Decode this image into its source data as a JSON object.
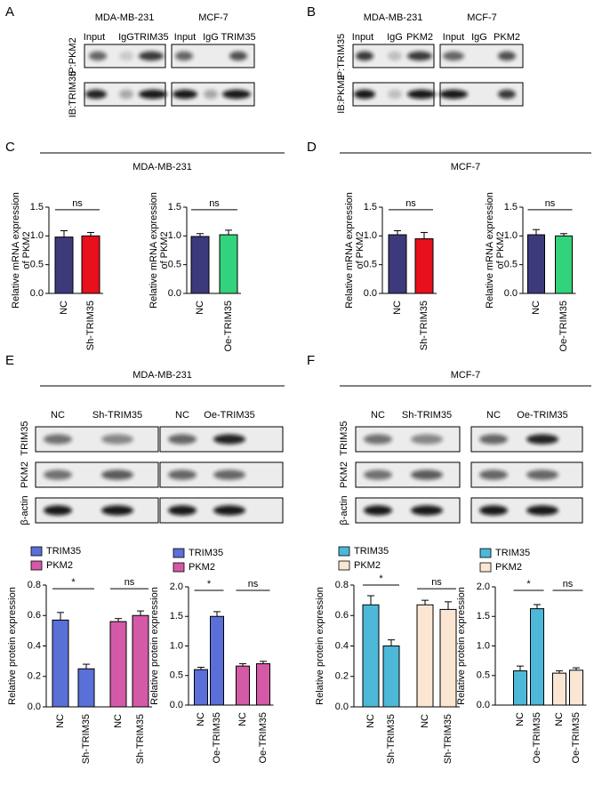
{
  "panels": {
    "A": {
      "letter": "A",
      "cell_lines": [
        "MDA-MB-231",
        "MCF-7"
      ],
      "lanes": [
        "Input",
        "IgG",
        "TRIM35",
        "Input",
        "IgG",
        "TRIM35"
      ],
      "ip": "IP:PKM2",
      "ib": "IB:TRIM35"
    },
    "B": {
      "letter": "B",
      "cell_lines": [
        "MDA-MB-231",
        "MCF-7"
      ],
      "lanes": [
        "Input",
        "IgG",
        "PKM2",
        "Input",
        "IgG",
        "PKM2"
      ],
      "ip": "IP:TRIM35",
      "ib": "IB:PKM2"
    },
    "C": {
      "letter": "C",
      "title": "MDA-MB-231"
    },
    "D": {
      "letter": "D",
      "title": "MCF-7"
    },
    "E": {
      "letter": "E",
      "title": "MDA-MB-231",
      "lanes": [
        "NC",
        "Sh-TRIM35",
        "NC",
        "Oe-TRIM35"
      ],
      "rows": [
        "TRIM35",
        "PKM2",
        "β-actin"
      ]
    },
    "F": {
      "letter": "F",
      "title": "MCF-7",
      "lanes": [
        "NC",
        "Sh-TRIM35",
        "NC",
        "Oe-TRIM35"
      ],
      "rows": [
        "TRIM35",
        "PKM2",
        "β-actin"
      ]
    }
  },
  "chart_data": [
    {
      "type": "bar",
      "ylabel": [
        "Relative mRNA expression",
        "of PKM2"
      ],
      "categories": [
        "NC",
        "Sh-TRIM35"
      ],
      "values": [
        0.98,
        1.0
      ],
      "errors": [
        0.11,
        0.06
      ],
      "colors": [
        "#3d3a7c",
        "#e8101c"
      ],
      "ylim": [
        0,
        1.5
      ],
      "yticks": [
        {
          "value": 0,
          "label": "0.0"
        },
        0.5,
        {
          "value": 1,
          "label": "1.0"
        },
        1.5
      ],
      "annotations": [
        "ns"
      ]
    },
    {
      "type": "bar",
      "ylabel": [
        "Relative mRNA expression",
        "of PKM2"
      ],
      "categories": [
        "NC",
        "Oe-TRIM35"
      ],
      "values": [
        0.99,
        1.02
      ],
      "errors": [
        0.05,
        0.08
      ],
      "colors": [
        "#3d3a7c",
        "#33d27c"
      ],
      "ylim": [
        0,
        1.5
      ],
      "yticks": [
        {
          "value": 0,
          "label": "0.0"
        },
        0.5,
        {
          "value": 1,
          "label": "1.0"
        },
        1.5
      ],
      "annotations": [
        "ns"
      ]
    },
    {
      "type": "bar",
      "ylabel": [
        "Relative mRNA expression",
        "of PKM2"
      ],
      "categories": [
        "NC",
        "Sh-TRIM35"
      ],
      "values": [
        1.02,
        0.95
      ],
      "errors": [
        0.07,
        0.11
      ],
      "colors": [
        "#3d3a7c",
        "#e8101c"
      ],
      "ylim": [
        0,
        1.5
      ],
      "yticks": [
        {
          "value": 0,
          "label": "0.0"
        },
        0.5,
        {
          "value": 1,
          "label": "1.0"
        },
        1.5
      ],
      "annotations": [
        "ns"
      ]
    },
    {
      "type": "bar",
      "ylabel": [
        "Relative mRNA expression",
        "of PKM2"
      ],
      "categories": [
        "NC",
        "Oe-TRIM35"
      ],
      "values": [
        1.02,
        1.0
      ],
      "errors": [
        0.09,
        0.04
      ],
      "colors": [
        "#3d3a7c",
        "#33d27c"
      ],
      "ylim": [
        0,
        1.5
      ],
      "yticks": [
        {
          "value": 0,
          "label": "0.0"
        },
        0.5,
        {
          "value": 1,
          "label": "1.0"
        },
        1.5
      ],
      "annotations": [
        "ns"
      ]
    },
    {
      "type": "grouped-bar",
      "ylabel": [
        "Relative protein expression"
      ],
      "categories": [
        "NC",
        "Sh-TRIM35",
        "NC",
        "Sh-TRIM35"
      ],
      "series": [
        {
          "name": "TRIM35",
          "color": "#5b6fd8",
          "values": [
            0.57,
            0.25,
            null,
            null
          ],
          "errors": [
            0.05,
            0.03,
            null,
            null
          ]
        },
        {
          "name": "PKM2",
          "color": "#d45aa8",
          "values": [
            null,
            null,
            0.56,
            0.6
          ],
          "errors": [
            null,
            null,
            0.02,
            0.03
          ]
        }
      ],
      "ylim": [
        0,
        0.8
      ],
      "yticks": [
        {
          "value": 0,
          "label": "0.0"
        },
        0.2,
        0.4,
        0.6,
        0.8
      ],
      "annotations": [
        "*",
        "ns"
      ]
    },
    {
      "type": "grouped-bar",
      "ylabel": [
        "Relative protein expression"
      ],
      "categories": [
        "NC",
        "Oe-TRIM35",
        "NC",
        "Oe-TRIM35"
      ],
      "series": [
        {
          "name": "TRIM35",
          "color": "#5b6fd8",
          "values": [
            0.6,
            1.5,
            null,
            null
          ],
          "errors": [
            0.04,
            0.08,
            null,
            null
          ]
        },
        {
          "name": "PKM2",
          "color": "#d45aa8",
          "values": [
            null,
            null,
            0.66,
            0.7
          ],
          "errors": [
            null,
            null,
            0.04,
            0.04
          ]
        }
      ],
      "ylim": [
        0,
        2
      ],
      "yticks": [
        {
          "value": 0,
          "label": "0.0"
        },
        0.5,
        {
          "value": 1,
          "label": "1.0"
        },
        1.5,
        {
          "value": 2,
          "label": "2.0"
        }
      ],
      "annotations": [
        "*",
        "ns"
      ]
    },
    {
      "type": "grouped-bar",
      "ylabel": [
        "Relative protein expression"
      ],
      "categories": [
        "NC",
        "Sh-TRIM35",
        "NC",
        "Sh-TRIM35"
      ],
      "series": [
        {
          "name": "TRIM35",
          "color": "#4db8d8",
          "values": [
            0.67,
            0.4,
            null,
            null
          ],
          "errors": [
            0.06,
            0.04,
            null,
            null
          ]
        },
        {
          "name": "PKM2",
          "color": "#fbe6d4",
          "values": [
            null,
            null,
            0.67,
            0.64
          ],
          "errors": [
            null,
            null,
            0.03,
            0.05
          ]
        }
      ],
      "ylim": [
        0,
        0.8
      ],
      "yticks": [
        {
          "value": 0,
          "label": "0.0"
        },
        0.2,
        0.4,
        0.6,
        0.8
      ],
      "annotations": [
        "*",
        "ns"
      ]
    },
    {
      "type": "grouped-bar",
      "ylabel": [
        "Relative protein expression"
      ],
      "categories": [
        "NC",
        "Oe-TRIM35",
        "NC",
        "Oe-TRIM35"
      ],
      "series": [
        {
          "name": "TRIM35",
          "color": "#4db8d8",
          "values": [
            0.58,
            1.63,
            null,
            null
          ],
          "errors": [
            0.08,
            0.07,
            null,
            null
          ]
        },
        {
          "name": "PKM2",
          "color": "#fbe6d4",
          "values": [
            null,
            null,
            0.54,
            0.59
          ],
          "errors": [
            null,
            null,
            0.04,
            0.04
          ]
        }
      ],
      "ylim": [
        0,
        2
      ],
      "yticks": [
        {
          "value": 0,
          "label": "0.0"
        },
        0.5,
        {
          "value": 1,
          "label": "1.0"
        },
        1.5,
        {
          "value": 2,
          "label": "2.0"
        }
      ],
      "annotations": [
        "*",
        "ns"
      ]
    }
  ]
}
